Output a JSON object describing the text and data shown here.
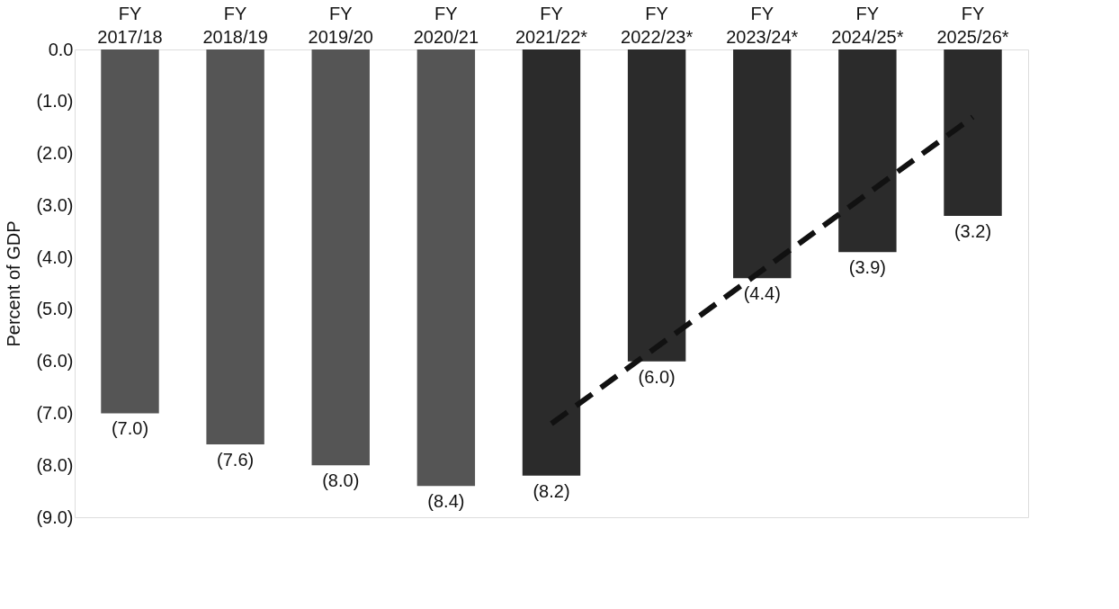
{
  "chart_data": {
    "type": "bar",
    "ylabel": "Percent of GDP",
    "categories": [
      "FY 2017/18",
      "FY 2018/19",
      "FY 2019/20",
      "FY 2020/21",
      "FY 2021/22*",
      "FY 2022/23*",
      "FY 2023/24*",
      "FY 2024/25*",
      "FY 2025/26*"
    ],
    "series": [
      {
        "values": [
          -7.0,
          -7.6,
          -8.0,
          -8.4,
          -8.2,
          -6.0,
          -4.4,
          -3.9,
          -3.2
        ],
        "colors": [
          "#555555",
          "#555555",
          "#555555",
          "#555555",
          "#2b2b2b",
          "#2b2b2b",
          "#2b2b2b",
          "#2b2b2b",
          "#2b2b2b"
        ],
        "value_labels": [
          "(7.0)",
          "(7.6)",
          "(8.0)",
          "(8.4)",
          "(8.2)",
          "(6.0)",
          "(4.4)",
          "(3.9)",
          "(3.2)"
        ]
      },
      {
        "type": "line",
        "x": [
          "FY 2021/22*",
          "FY 2025/26*"
        ],
        "values": [
          -7.2,
          -1.3
        ],
        "color": "#111111",
        "line_style": "dashed"
      }
    ],
    "ylim": [
      -9,
      0
    ],
    "yticks": [
      {
        "value": 0,
        "label": "0.0"
      },
      {
        "value": -1,
        "label": "(1.0)"
      },
      {
        "value": -2,
        "label": "(2.0)"
      },
      {
        "value": -3,
        "label": "(3.0)"
      },
      {
        "value": -4,
        "label": "(4.0)"
      },
      {
        "value": -5,
        "label": "(5.0)"
      },
      {
        "value": -6,
        "label": "(6.0)"
      },
      {
        "value": -7,
        "label": "(7.0)"
      },
      {
        "value": -8,
        "label": "(8.0)"
      },
      {
        "value": -9,
        "label": "(9.0)"
      }
    ],
    "grid": false
  }
}
